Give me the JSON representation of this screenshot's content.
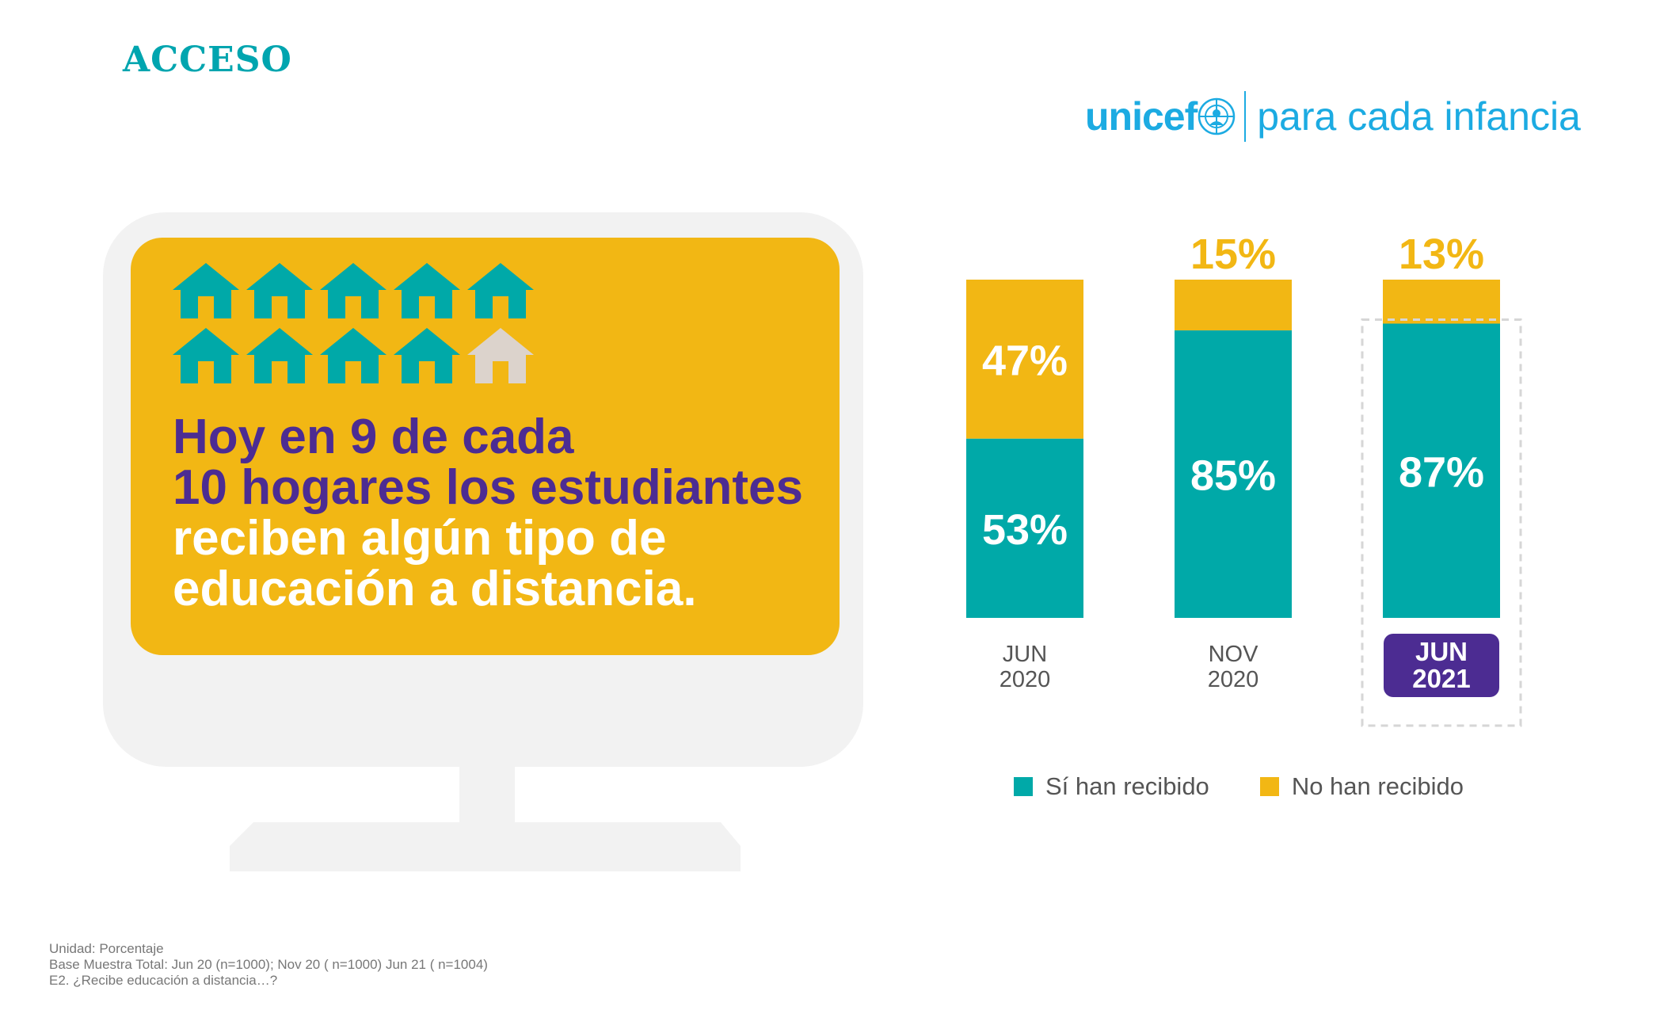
{
  "section_title": "ACCESO",
  "logo": {
    "brand": "unicef",
    "tagline": "para cada infancia"
  },
  "headline": {
    "line1": "Hoy en 9 de cada",
    "line2": "10 hogares los estudiantes",
    "line3": "reciben algún tipo de",
    "line4": "educación a distancia."
  },
  "icon_grid": {
    "icon": "house-icon",
    "total": 10,
    "highlighted": 9
  },
  "colors": {
    "teal": "#00A9A8",
    "yellow": "#F2B714",
    "purple": "#4C2C92",
    "monitor": "#F2F2F2",
    "house_inactive": "#DCD3CC",
    "unicef_blue": "#1CABE2"
  },
  "chart_data": {
    "type": "bar",
    "stacked": true,
    "categories": [
      "JUN 2020",
      "NOV 2020",
      "JUN 2021"
    ],
    "category_lines": [
      [
        "JUN",
        "2020"
      ],
      [
        "NOV",
        "2020"
      ],
      [
        "JUN",
        "2021"
      ]
    ],
    "highlighted_category": 2,
    "series": [
      {
        "name": "Sí han recibido",
        "values": [
          53,
          85,
          87
        ],
        "labels": [
          "53%",
          "85%",
          "87%"
        ]
      },
      {
        "name": "No han recibido",
        "values": [
          47,
          15,
          13
        ],
        "labels": [
          "47%",
          "15%",
          "13%"
        ]
      }
    ],
    "ylim": [
      0,
      100
    ],
    "legend_position": "bottom",
    "grid": false
  },
  "legend": {
    "yes": "Sí han recibido",
    "no": "No han recibido"
  },
  "notes": {
    "unit": "Unidad: Porcentaje",
    "base": "Base Muestra Total: Jun 20 (n=1000); Nov 20 ( n=1000) Jun 21 ( n=1004)",
    "question": "E2. ¿Recibe educación a distancia…?"
  }
}
